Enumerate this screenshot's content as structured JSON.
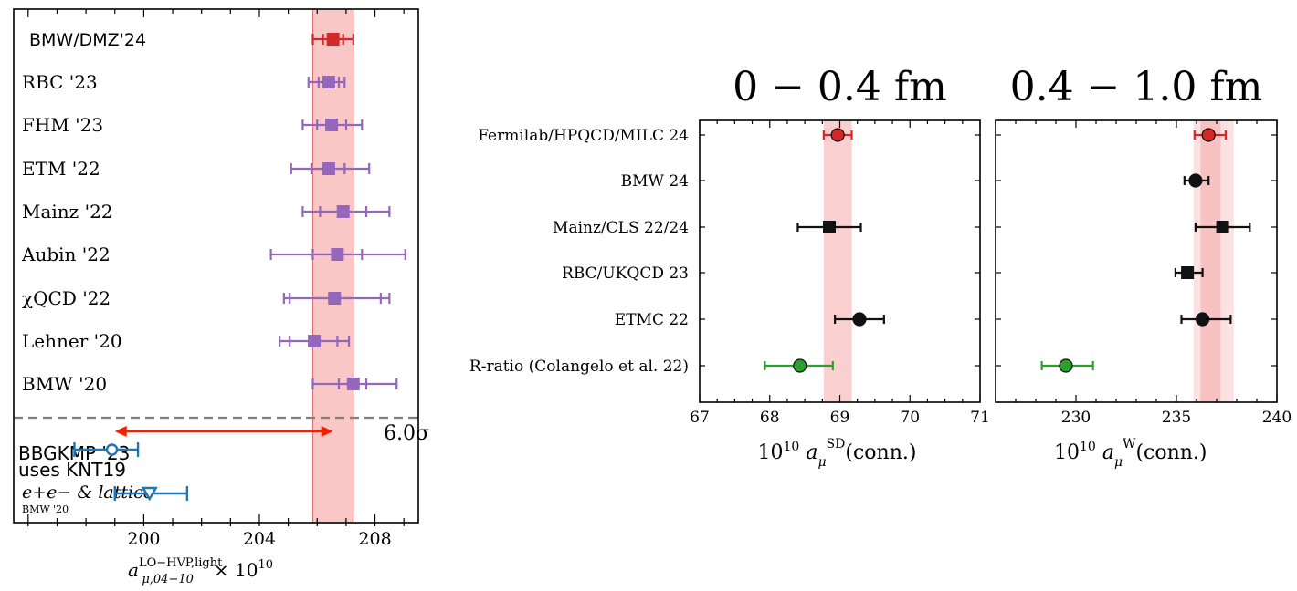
{
  "chart_data": [
    {
      "type": "forest",
      "xlabel": "a_{μ,04−10}^{LO−HVP,light} × 10^{10}",
      "xlabel_parts": {
        "base": "a",
        "sup": "LO−HVP,light",
        "sub": "μ,04−10",
        "tail": "× 10",
        "exp": "10"
      },
      "xlim": [
        195.5,
        209.5
      ],
      "xticks": [
        200,
        204,
        208
      ],
      "band": {
        "center": 206.55,
        "low": 205.85,
        "high": 207.25,
        "color": "#f4a9a8"
      },
      "entries": [
        {
          "label": "BMW/DMZ'24",
          "value": 206.55,
          "stat": [
            206.2,
            206.9
          ],
          "total": [
            205.85,
            207.25
          ],
          "color": "#d62728",
          "marker": "square"
        },
        {
          "label": "RBC '23",
          "value": 206.4,
          "stat": [
            206.05,
            206.75
          ],
          "total": [
            205.7,
            206.95
          ],
          "color": "#9467bd",
          "marker": "square"
        },
        {
          "label": "FHM '23",
          "value": 206.5,
          "stat": [
            206.0,
            207.0
          ],
          "total": [
            205.5,
            207.55
          ],
          "color": "#9467bd",
          "marker": "square"
        },
        {
          "label": "ETM '22",
          "value": 206.4,
          "stat": [
            205.8,
            206.95
          ],
          "total": [
            205.1,
            207.8
          ],
          "color": "#9467bd",
          "marker": "square"
        },
        {
          "label": "Mainz '22",
          "value": 206.9,
          "stat": [
            206.1,
            207.7
          ],
          "total": [
            205.5,
            208.5
          ],
          "color": "#9467bd",
          "marker": "square"
        },
        {
          "label": "Aubin '22",
          "value": 206.7,
          "stat": [
            205.85,
            207.55
          ],
          "total": [
            204.4,
            209.05
          ],
          "color": "#9467bd",
          "marker": "square"
        },
        {
          "label": "χQCD '22",
          "value": 206.6,
          "stat": [
            205.05,
            208.2
          ],
          "total": [
            204.85,
            208.5
          ],
          "color": "#9467bd",
          "marker": "square"
        },
        {
          "label": "Lehner '20",
          "value": 205.9,
          "stat": [
            205.05,
            206.7
          ],
          "total": [
            204.7,
            207.1
          ],
          "color": "#9467bd",
          "marker": "square"
        },
        {
          "label": "BMW '20",
          "value": 207.25,
          "stat": [
            206.75,
            207.7
          ],
          "total": [
            205.85,
            208.75
          ],
          "color": "#9467bd",
          "marker": "square"
        },
        {
          "label": "BBGKMP '23",
          "label2": "uses KNT19",
          "value": 198.9,
          "total": [
            197.6,
            199.8
          ],
          "color": "#1f77b4",
          "marker": "circle-open"
        },
        {
          "label": "e+e− & lattice",
          "label2": "BMW '20",
          "value": 200.2,
          "total": [
            199.0,
            201.5
          ],
          "color": "#1f77b4",
          "marker": "triangle-open"
        }
      ],
      "annotation": {
        "text": "6.0σ",
        "from": 199.0,
        "to": 206.55,
        "color": "#ee2200"
      }
    },
    {
      "type": "forest",
      "title": "0 − 0.4 fm",
      "xlabel": "10^{10} a_μ^{SD}(conn.)",
      "xlabel_parts": {
        "pre": "10",
        "pre_exp": "10",
        "base": "a",
        "sub": "μ",
        "sup": "SD",
        "tail": "(conn.)"
      },
      "xlim": [
        67,
        71
      ],
      "xticks": [
        67,
        68,
        69,
        70,
        71
      ],
      "band": {
        "low": 68.77,
        "high": 69.17,
        "color": "#f4a9a8"
      },
      "entries": [
        {
          "label": "Fermilab/HPQCD/MILC 24",
          "value": 68.97,
          "err": [
            68.77,
            69.17
          ],
          "color": "#d62728",
          "marker": "circle"
        },
        {
          "label": "BMW 24",
          "value": null
        },
        {
          "label": "Mainz/CLS 22/24",
          "value": 68.85,
          "err": [
            68.4,
            69.3
          ],
          "color": "#111111",
          "marker": "square"
        },
        {
          "label": "RBC/UKQCD 23",
          "value": null
        },
        {
          "label": "ETMC 22",
          "value": 69.28,
          "err": [
            68.93,
            69.63
          ],
          "color": "#111111",
          "marker": "circle"
        },
        {
          "label": "R-ratio (Colangelo et al. 22)",
          "value": 68.43,
          "err": [
            67.93,
            68.9
          ],
          "color": "#2ca02c",
          "marker": "circle"
        }
      ]
    },
    {
      "type": "forest",
      "title": "0.4 − 1.0 fm",
      "xlabel": "10^{10} a_μ^{W}(conn.)",
      "xlabel_parts": {
        "pre": "10",
        "pre_exp": "10",
        "base": "a",
        "sub": "μ",
        "sup": "W",
        "tail": "(conn.)"
      },
      "xlim": [
        226,
        240
      ],
      "xticks": [
        230,
        235,
        240
      ],
      "band": {
        "low": 236.2,
        "high": 237.2,
        "outer_low": 235.85,
        "outer_high": 237.85,
        "color": "#f4a9a8"
      },
      "entries": [
        {
          "label": "Fermilab/HPQCD/MILC 24",
          "value": 236.6,
          "err": [
            235.9,
            237.45
          ],
          "color": "#d62728",
          "marker": "circle"
        },
        {
          "label": "BMW 24",
          "value": 235.95,
          "err": [
            235.4,
            236.6
          ],
          "color": "#111111",
          "marker": "circle"
        },
        {
          "label": "Mainz/CLS 22/24",
          "value": 237.3,
          "err": [
            235.95,
            238.65
          ],
          "color": "#111111",
          "marker": "square"
        },
        {
          "label": "RBC/UKQCD 23",
          "value": 235.55,
          "err": [
            234.95,
            236.3
          ],
          "color": "#111111",
          "marker": "square"
        },
        {
          "label": "ETMC 22",
          "value": 236.3,
          "err": [
            235.25,
            237.7
          ],
          "color": "#111111",
          "marker": "circle"
        },
        {
          "label": "R-ratio (Colangelo et al. 22)",
          "value": 229.5,
          "err": [
            228.3,
            230.85
          ],
          "color": "#2ca02c",
          "marker": "circle"
        }
      ]
    }
  ]
}
